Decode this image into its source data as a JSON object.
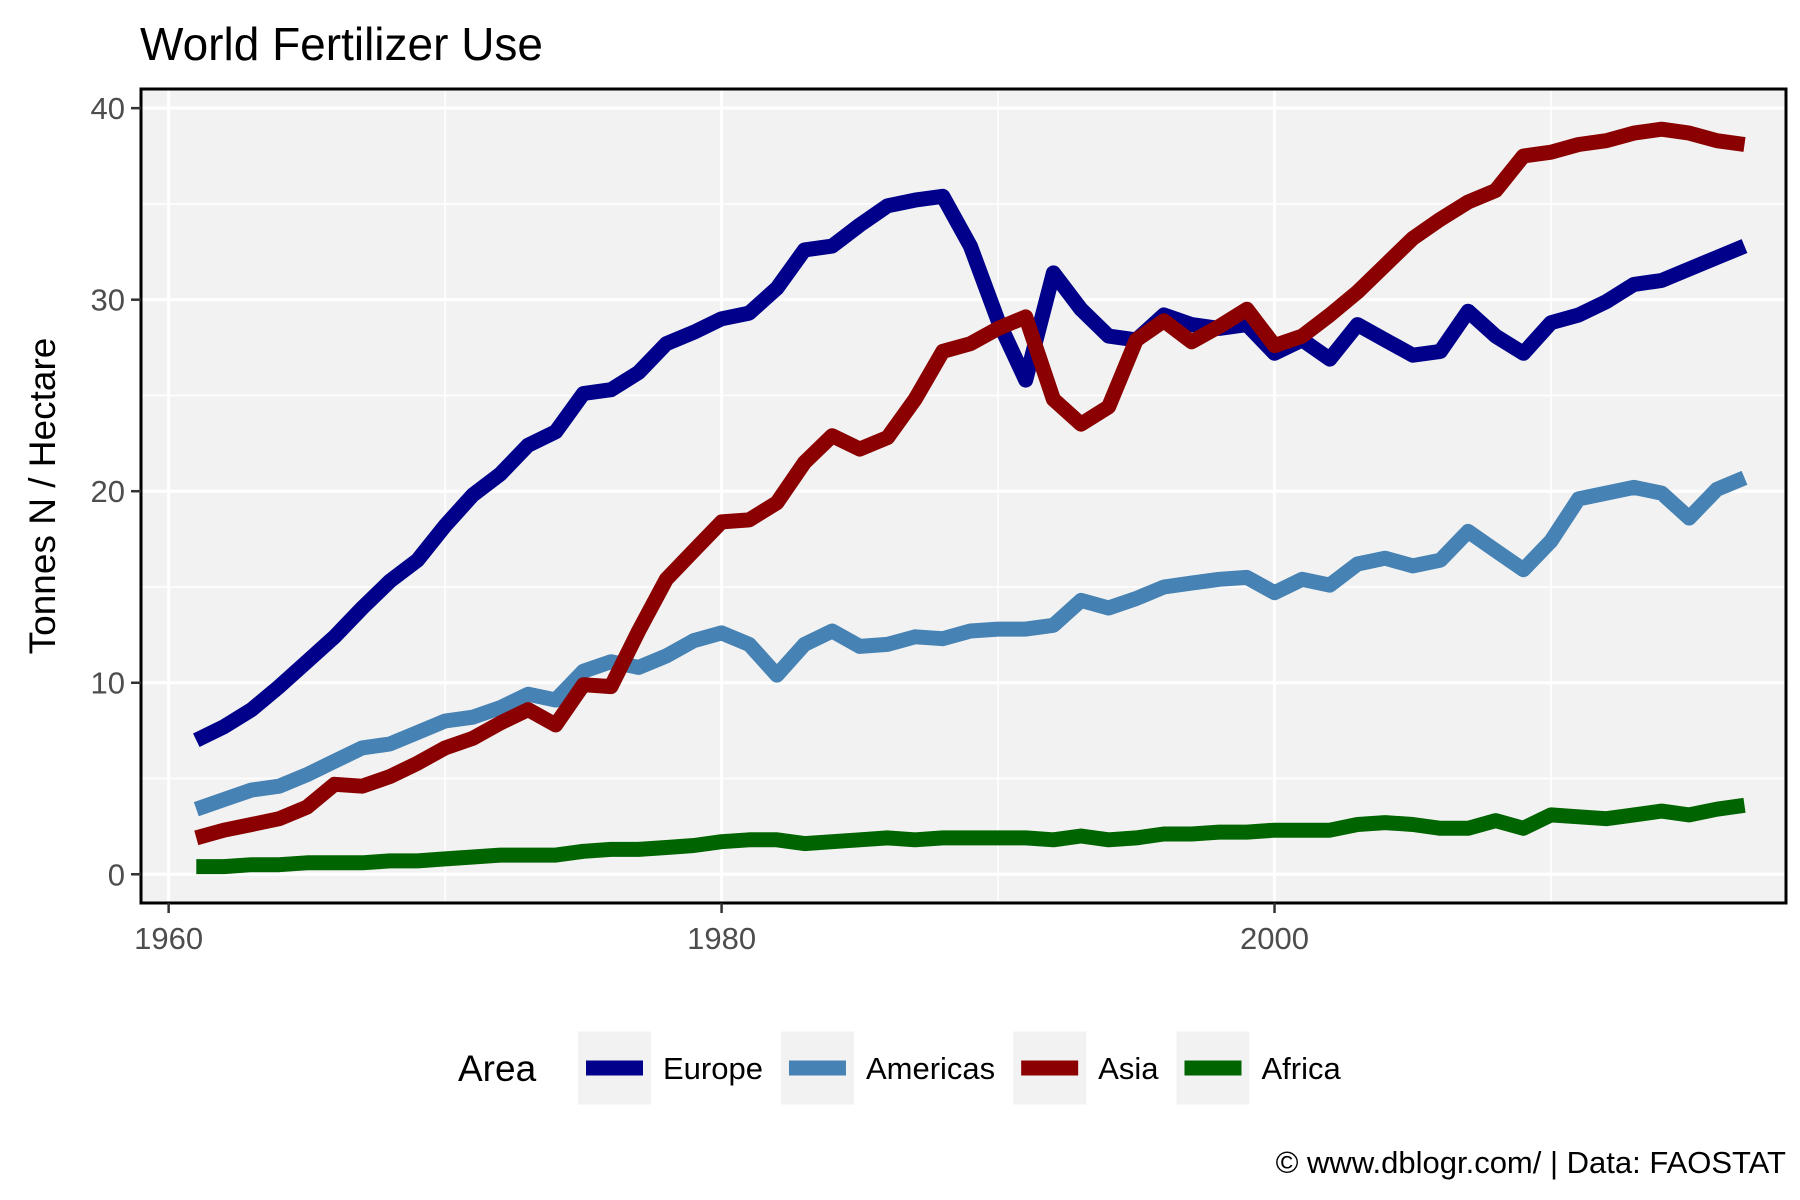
{
  "chart_data": {
    "type": "line",
    "title": "World Fertilizer Use",
    "xlabel": "",
    "ylabel": "Tonnes N / Hectare",
    "caption": "© www.dblogr.com/ | Data: FAOSTAT",
    "legend_title": "Area",
    "legend_position": "bottom",
    "xlim": [
      1959,
      2018.5
    ],
    "ylim": [
      -1.5,
      41
    ],
    "x_ticks": [
      1960,
      1980,
      2000
    ],
    "y_ticks": [
      0,
      10,
      20,
      30,
      40
    ],
    "grid": true,
    "x": [
      1961,
      1962,
      1963,
      1964,
      1965,
      1966,
      1967,
      1968,
      1969,
      1970,
      1971,
      1972,
      1973,
      1974,
      1975,
      1976,
      1977,
      1978,
      1979,
      1980,
      1981,
      1982,
      1983,
      1984,
      1985,
      1986,
      1987,
      1988,
      1989,
      1990,
      1991,
      1992,
      1993,
      1994,
      1995,
      1996,
      1997,
      1998,
      1999,
      2000,
      2001,
      2002,
      2003,
      2004,
      2005,
      2006,
      2007,
      2008,
      2009,
      2010,
      2011,
      2012,
      2013,
      2014,
      2015,
      2016,
      2017
    ],
    "series": [
      {
        "name": "Europe",
        "color": "#00008b",
        "values": [
          7.0,
          7.7,
          8.6,
          9.8,
          11.1,
          12.4,
          13.9,
          15.3,
          16.4,
          18.2,
          19.8,
          20.9,
          22.4,
          23.1,
          25.1,
          25.3,
          26.2,
          27.7,
          28.3,
          29.0,
          29.3,
          30.6,
          32.6,
          32.8,
          33.9,
          34.9,
          35.2,
          35.4,
          32.8,
          28.9,
          25.8,
          31.4,
          29.5,
          28.1,
          27.9,
          29.2,
          28.7,
          28.5,
          28.7,
          27.2,
          27.9,
          26.9,
          28.7,
          27.9,
          27.1,
          27.3,
          29.4,
          28.1,
          27.2,
          28.8,
          29.2,
          29.9,
          30.8,
          31.0,
          31.6,
          32.2,
          32.8
        ]
      },
      {
        "name": "Americas",
        "color": "#4682b4",
        "values": [
          3.4,
          3.9,
          4.4,
          4.6,
          5.2,
          5.9,
          6.6,
          6.8,
          7.4,
          8.0,
          8.2,
          8.7,
          9.4,
          9.1,
          10.6,
          11.1,
          10.8,
          11.4,
          12.2,
          12.6,
          12.0,
          10.4,
          12.0,
          12.7,
          11.9,
          12.0,
          12.4,
          12.3,
          12.7,
          12.8,
          12.8,
          13.0,
          14.3,
          13.9,
          14.4,
          15.0,
          15.2,
          15.4,
          15.5,
          14.7,
          15.4,
          15.1,
          16.2,
          16.5,
          16.1,
          16.4,
          17.9,
          16.9,
          15.9,
          17.4,
          19.6,
          19.9,
          20.2,
          19.9,
          18.6,
          20.1,
          20.7
        ]
      },
      {
        "name": "Asia",
        "color": "#8b0000",
        "values": [
          1.9,
          2.3,
          2.6,
          2.9,
          3.5,
          4.7,
          4.6,
          5.1,
          5.8,
          6.6,
          7.1,
          7.9,
          8.6,
          7.8,
          9.9,
          9.8,
          12.7,
          15.4,
          16.9,
          18.4,
          18.5,
          19.4,
          21.5,
          22.9,
          22.2,
          22.8,
          24.8,
          27.3,
          27.7,
          28.5,
          29.1,
          24.8,
          23.5,
          24.4,
          27.9,
          28.9,
          27.8,
          28.6,
          29.5,
          27.6,
          28.1,
          29.2,
          30.4,
          31.8,
          33.2,
          34.2,
          35.1,
          35.7,
          37.5,
          37.7,
          38.1,
          38.3,
          38.7,
          38.9,
          38.7,
          38.3,
          38.1
        ]
      },
      {
        "name": "Africa",
        "color": "#006400",
        "values": [
          0.4,
          0.4,
          0.5,
          0.5,
          0.6,
          0.6,
          0.6,
          0.7,
          0.7,
          0.8,
          0.9,
          1.0,
          1.0,
          1.0,
          1.2,
          1.3,
          1.3,
          1.4,
          1.5,
          1.7,
          1.8,
          1.8,
          1.6,
          1.7,
          1.8,
          1.9,
          1.8,
          1.9,
          1.9,
          1.9,
          1.9,
          1.8,
          2.0,
          1.8,
          1.9,
          2.1,
          2.1,
          2.2,
          2.2,
          2.3,
          2.3,
          2.3,
          2.6,
          2.7,
          2.6,
          2.4,
          2.4,
          2.8,
          2.4,
          3.1,
          3.0,
          2.9,
          3.1,
          3.3,
          3.1,
          3.4,
          3.6
        ]
      }
    ],
    "background_colors": {
      "panel": "#f2f2f2",
      "grid": "#ffffff",
      "border": "#000000"
    }
  }
}
